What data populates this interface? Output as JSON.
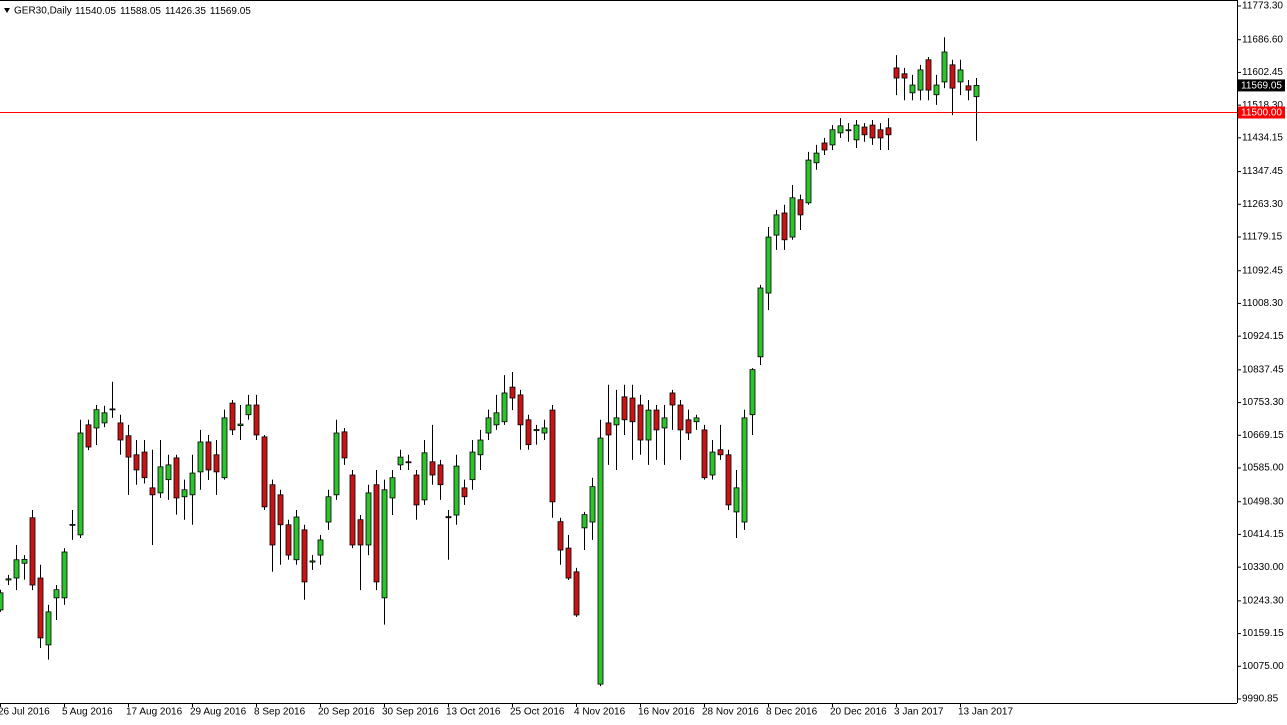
{
  "chart_data": {
    "type": "candlestick",
    "title": "GER30,Daily",
    "categories": [
      "26 Jul 2016",
      null,
      null,
      null,
      null,
      null,
      null,
      null,
      "5 Aug 2016",
      null,
      null,
      null,
      null,
      null,
      null,
      null,
      "17 Aug 2016",
      null,
      null,
      null,
      null,
      null,
      null,
      null,
      "29 Aug 2016",
      null,
      null,
      null,
      null,
      null,
      null,
      null,
      "8 Sep 2016",
      null,
      null,
      null,
      null,
      null,
      null,
      null,
      "20 Sep 2016",
      null,
      null,
      null,
      null,
      null,
      null,
      null,
      "30 Sep 2016",
      null,
      null,
      null,
      null,
      null,
      null,
      null,
      "13 Oct 2016",
      null,
      null,
      null,
      null,
      null,
      null,
      null,
      "25 Oct 2016",
      null,
      null,
      null,
      null,
      null,
      null,
      null,
      "4 Nov 2016",
      null,
      null,
      null,
      null,
      null,
      null,
      null,
      "16 Nov 2016",
      null,
      null,
      null,
      null,
      null,
      null,
      null,
      "28 Nov 2016",
      null,
      null,
      null,
      null,
      null,
      null,
      null,
      "8 Dec 2016",
      null,
      null,
      null,
      null,
      null,
      null,
      null,
      "20 Dec 2016",
      null,
      null,
      null,
      null,
      null,
      null,
      null,
      "3 Jan 2017",
      null,
      null,
      null,
      null,
      null,
      null,
      null,
      "13 Jan 2017",
      null,
      null
    ],
    "open": [
      10220,
      10297,
      10302,
      10340,
      10457,
      10302,
      10130,
      10251,
      10251,
      10438,
      10413,
      10696,
      10688,
      10701,
      10735,
      10701,
      10668,
      10619,
      10626,
      10534,
      10521,
      10555,
      10611,
      10511,
      10516,
      10575,
      10652,
      10619,
      10560,
      10752,
      10694,
      10722,
      10747,
      10665,
      10542,
      10516,
      10439,
      10349,
      10426,
      10343,
      10361,
      10446,
      10516,
      10678,
      10567,
      10452,
      10387,
      10542,
      10251,
      10508,
      10593,
      10601,
      10567,
      10503,
      10601,
      10593,
      10460,
      10464,
      10534,
      10555,
      10619,
      10675,
      10696,
      10704,
      10793,
      10773,
      10709,
      10681,
      10675,
      10734,
      10447,
      10379,
      10318,
      10431,
      10446,
      10029,
      10701,
      10696,
      10768,
      10765,
      10747,
      10657,
      10734,
      10688,
      10778,
      10747,
      10709,
      10704,
      10683,
      10567,
      10632,
      10619,
      10472,
      10446,
      10722,
      10871,
      11035,
      11184,
      11241,
      11179,
      11275,
      11267,
      11370,
      11421,
      11416,
      11447,
      11453,
      11429,
      11462,
      11467,
      11455,
      11460,
      11614,
      11599,
      11550,
      11557,
      11635,
      11545,
      11578,
      11622,
      11578,
      11568,
      11540.05
    ],
    "high": [
      10272,
      10310,
      10387,
      10361,
      10477,
      10336,
      10233,
      10284,
      10379,
      10477,
      10709,
      10709,
      10747,
      10745,
      10807,
      10722,
      10696,
      10657,
      10657,
      10632,
      10657,
      10619,
      10619,
      10555,
      10619,
      10683,
      10670,
      10657,
      10735,
      10760,
      10747,
      10773,
      10773,
      10670,
      10555,
      10529,
      10452,
      10477,
      10439,
      10361,
      10413,
      10529,
      10709,
      10688,
      10580,
      10464,
      10542,
      10580,
      10555,
      10580,
      10632,
      10619,
      10580,
      10657,
      10696,
      10606,
      10477,
      10619,
      10555,
      10657,
      10683,
      10735,
      10773,
      10824,
      10832,
      10786,
      10722,
      10696,
      10709,
      10747,
      10457,
      10413,
      10328,
      10472,
      10560,
      10709,
      10799,
      10786,
      10799,
      10799,
      10773,
      10760,
      10747,
      10747,
      10786,
      10760,
      10735,
      10722,
      10696,
      10657,
      10696,
      10632,
      10580,
      10735,
      10842,
      11056,
      11205,
      11249,
      11262,
      11313,
      11288,
      11398,
      11416,
      11434,
      11467,
      11485,
      11472,
      11480,
      11472,
      11480,
      11472,
      11485,
      11647,
      11614,
      11596,
      11622,
      11642,
      11596,
      11693,
      11635,
      11635,
      11583,
      11588.05
    ],
    "low": [
      10215,
      10284,
      10271,
      10298,
      10271,
      10122,
      10092,
      10194,
      10233,
      10400,
      10405,
      10631,
      10644,
      10690,
      10714,
      10619,
      10516,
      10542,
      10545,
      10387,
      10508,
      10503,
      10465,
      10452,
      10439,
      10529,
      10554,
      10516,
      10555,
      10670,
      10657,
      10709,
      10657,
      10477,
      10318,
      10336,
      10349,
      10336,
      10246,
      10323,
      10336,
      10426,
      10503,
      10593,
      10379,
      10271,
      10361,
      10271,
      10182,
      10464,
      10580,
      10580,
      10452,
      10490,
      10542,
      10503,
      10349,
      10439,
      10490,
      10529,
      10580,
      10657,
      10683,
      10696,
      10734,
      10632,
      10632,
      10645,
      10657,
      10457,
      10336,
      10297,
      10202,
      10374,
      10400,
      10024,
      10593,
      10580,
      10670,
      10606,
      10619,
      10593,
      10606,
      10593,
      10683,
      10606,
      10657,
      10683,
      10555,
      10555,
      10606,
      10477,
      10405,
      10426,
      10670,
      10850,
      10991,
      11146,
      11146,
      11172,
      11197,
      11262,
      11352,
      11390,
      11403,
      11434,
      11424,
      11408,
      11424,
      11416,
      11403,
      11403,
      11544,
      11531,
      11531,
      11531,
      11531,
      11519,
      11562,
      11493,
      11544,
      11531,
      11426.35
    ],
    "close": [
      10264,
      10300,
      10349,
      10350,
      10284,
      10148,
      10215,
      10272,
      10369,
      10440,
      10675,
      10639,
      10735,
      10727,
      10737,
      10657,
      10613,
      10580,
      10560,
      10516,
      10588,
      10593,
      10508,
      10529,
      10572,
      10652,
      10580,
      10575,
      10714,
      10683,
      10698,
      10747,
      10670,
      10485,
      10387,
      10439,
      10361,
      10459,
      10292,
      10346,
      10400,
      10511,
      10675,
      10611,
      10387,
      10387,
      10521,
      10292,
      10529,
      10560,
      10613,
      10600,
      10490,
      10624,
      10567,
      10542,
      10457,
      10590,
      10511,
      10626,
      10657,
      10714,
      10727,
      10778,
      10765,
      10696,
      10645,
      10684,
      10688,
      10498,
      10374,
      10302,
      10207,
      10465,
      10537,
      10662,
      10670,
      10714,
      10709,
      10704,
      10657,
      10734,
      10683,
      10714,
      10747,
      10683,
      10675,
      10714,
      10560,
      10626,
      10619,
      10490,
      10534,
      10714,
      10838,
      11048,
      11179,
      11236,
      11172,
      11280,
      11236,
      11377,
      11395,
      11403,
      11455,
      11465,
      11455,
      11467,
      11442,
      11434,
      11434,
      11442,
      11588,
      11588,
      11570,
      11609,
      11557,
      11570,
      11655,
      11562,
      11609,
      11557,
      11569.05
    ],
    "up_color": "#2bc52b",
    "down_color": "#c81414",
    "ylim": [
      9990.85,
      11773.3
    ],
    "yticks": [
      {
        "value": 11773.3,
        "label": "11773.30"
      },
      {
        "value": 11686.6,
        "label": "11686.60"
      },
      {
        "value": 11602.45,
        "label": "11602.45"
      },
      {
        "value": 11518.3,
        "label": "11518.30"
      },
      {
        "value": 11434.15,
        "label": "11434.15"
      },
      {
        "value": 11347.45,
        "label": "11347.45"
      },
      {
        "value": 11263.3,
        "label": "11263.30"
      },
      {
        "value": 11179.15,
        "label": "11179.15"
      },
      {
        "value": 11092.45,
        "label": "11092.45"
      },
      {
        "value": 11008.3,
        "label": "11008.30"
      },
      {
        "value": 10924.15,
        "label": "10924.15"
      },
      {
        "value": 10837.45,
        "label": "10837.45"
      },
      {
        "value": 10753.3,
        "label": "10753.30"
      },
      {
        "value": 10669.15,
        "label": "10669.15"
      },
      {
        "value": 10585.0,
        "label": "10585.00"
      },
      {
        "value": 10498.3,
        "label": "10498.30"
      },
      {
        "value": 10414.15,
        "label": "10414.15"
      },
      {
        "value": 10330.0,
        "label": "10330.00"
      },
      {
        "value": 10243.3,
        "label": "10243.30"
      },
      {
        "value": 10159.15,
        "label": "10159.15"
      },
      {
        "value": 10075.0,
        "label": "10075.00"
      },
      {
        "value": 9990.85,
        "label": "9990.85"
      }
    ],
    "hline": {
      "value": 11500,
      "label": "11500.00",
      "color": "#ff0000"
    },
    "grid": false
  }
}
